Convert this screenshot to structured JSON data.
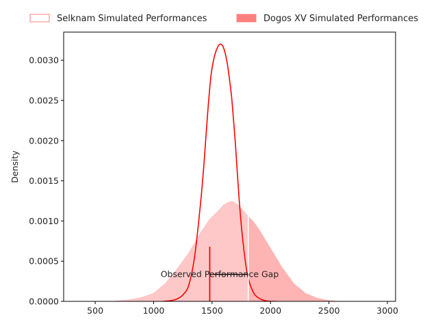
{
  "chart_data": {
    "type": "area",
    "title": "",
    "xlabel": "",
    "ylabel": "Density",
    "xlim": [
      230,
      3070
    ],
    "ylim": [
      0,
      0.00335
    ],
    "x_ticks": [
      500,
      1000,
      1500,
      2000,
      2500,
      3000
    ],
    "y_ticks": [
      0.0,
      0.0005,
      0.001,
      0.0015,
      0.002,
      0.0025,
      0.003
    ],
    "y_tick_labels": [
      "0.0000",
      "0.0005",
      "0.0010",
      "0.0015",
      "0.0020",
      "0.0025",
      "0.0030"
    ],
    "legend_position": "top, outside plot area",
    "series": [
      {
        "name": "Selknam Simulated Performances",
        "style": "filled density (light red)",
        "color": "#ffc8c8",
        "x": [
          650,
          800,
          900,
          1000,
          1100,
          1200,
          1300,
          1400,
          1480,
          1550,
          1600,
          1650,
          1680,
          1720,
          1760,
          1800,
          1850,
          1900,
          2000,
          2100,
          2200,
          2300,
          2400,
          2500,
          2600
        ],
        "y": [
          0.0,
          2e-05,
          5e-05,
          0.0001,
          0.00022,
          0.0004,
          0.0006,
          0.00085,
          0.00102,
          0.00112,
          0.0012,
          0.00124,
          0.00124,
          0.0012,
          0.00114,
          0.00107,
          0.001,
          0.0009,
          0.00066,
          0.00042,
          0.00022,
          0.0001,
          4e-05,
          1e-05,
          0.0
        ]
      },
      {
        "name": "Dogos XV Simulated Performances",
        "style": "density line",
        "color": "#ff0000",
        "x": [
          1080,
          1150,
          1200,
          1250,
          1300,
          1350,
          1400,
          1430,
          1460,
          1490,
          1520,
          1550,
          1570,
          1590,
          1610,
          1630,
          1650,
          1670,
          1700,
          1730,
          1760,
          1800,
          1850,
          1900,
          1950,
          2000,
          2050
        ],
        "y": [
          0.0,
          1e-05,
          3e-05,
          8e-05,
          0.0002,
          0.00055,
          0.0012,
          0.0017,
          0.0023,
          0.0028,
          0.00305,
          0.00317,
          0.0032,
          0.00318,
          0.0031,
          0.00296,
          0.00275,
          0.0025,
          0.00195,
          0.0013,
          0.0008,
          0.00035,
          0.00012,
          4e-05,
          1e-05,
          0.0,
          0.0
        ]
      }
    ],
    "markers": {
      "observed_line_x": 1480,
      "observed_line_y_top": 0.00068,
      "white_line_x": 1810,
      "white_line_y_top": 0.00115,
      "gap_bar": {
        "x1": 1480,
        "x2": 1810,
        "y": 0.000335
      },
      "gap_text_center_x": 1565,
      "gap_text_y": 0.00034
    },
    "annotations": [
      "Observed Performance Gap"
    ]
  },
  "legend": [
    {
      "label": "Selknam Simulated Performances",
      "style": "outline",
      "color": "#ff7f7f"
    },
    {
      "label": "Dogos XV Simulated Performances",
      "style": "filled",
      "color": "#ff7f7f"
    }
  ]
}
